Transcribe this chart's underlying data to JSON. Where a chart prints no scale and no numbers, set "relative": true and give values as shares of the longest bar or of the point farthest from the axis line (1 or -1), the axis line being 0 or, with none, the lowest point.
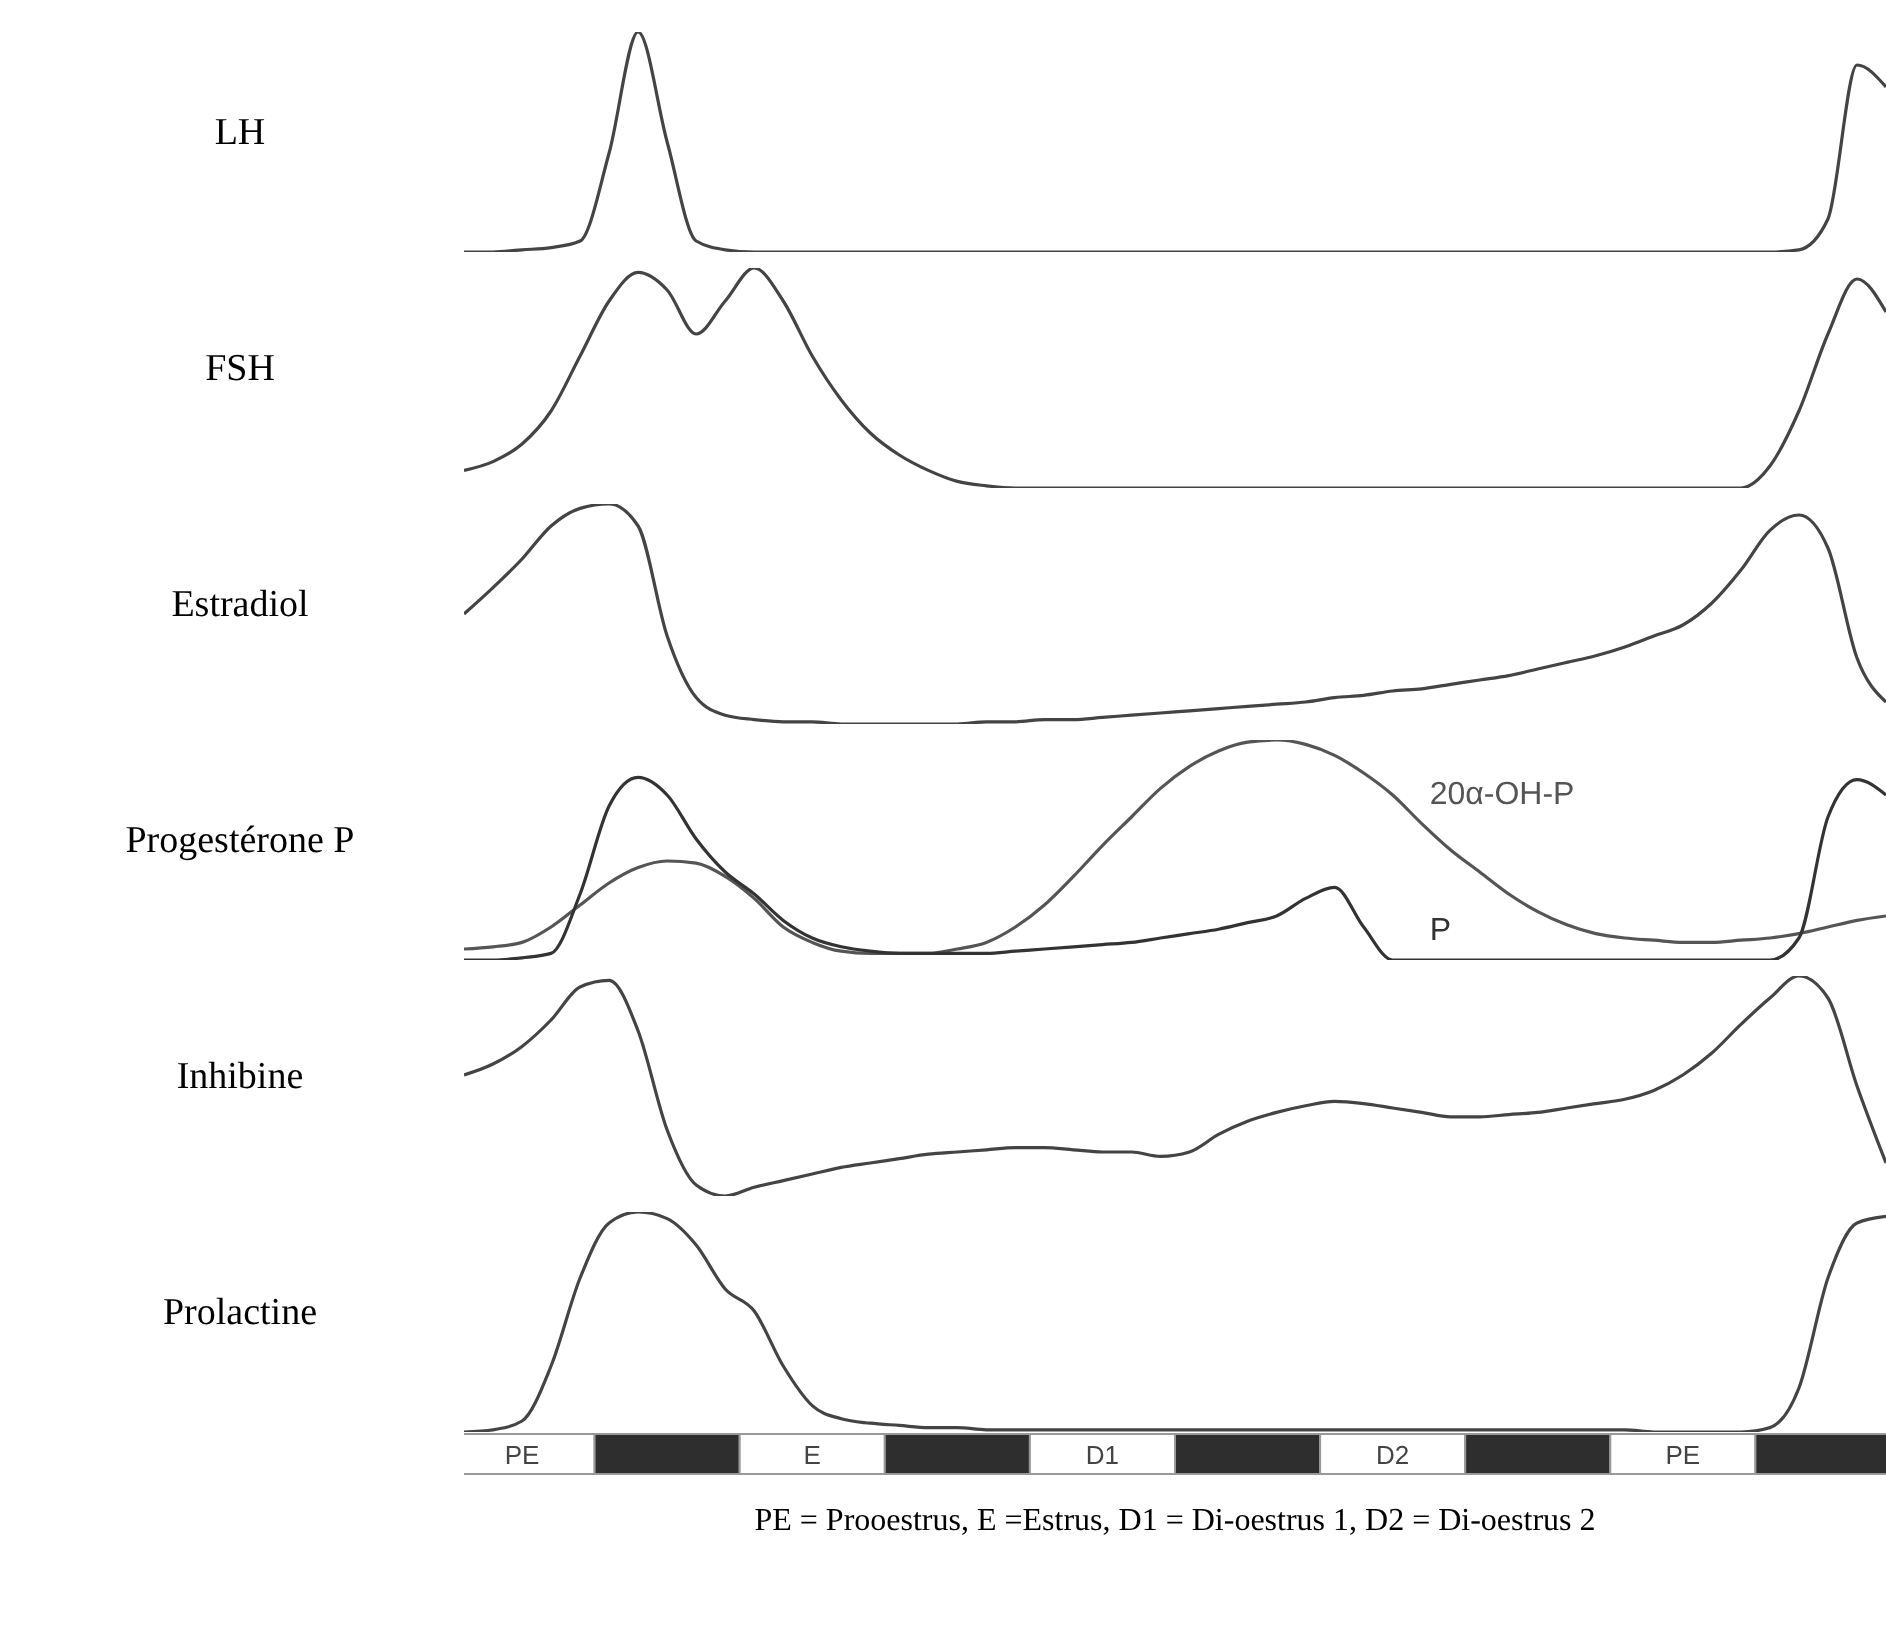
{
  "chart_data": [
    {
      "type": "line",
      "ylabel": "LH",
      "relative": true,
      "tick_labels": false,
      "categories": [
        null,
        null,
        null,
        null,
        null,
        null,
        null,
        null,
        null,
        null,
        null,
        null,
        null,
        null,
        null,
        null,
        null,
        null,
        null,
        null,
        null,
        null,
        null,
        null,
        null,
        null,
        null,
        null,
        null,
        null,
        null,
        null,
        null,
        null,
        null,
        null,
        null,
        null,
        null,
        null,
        null,
        null,
        null,
        null,
        null,
        null,
        null,
        null,
        null,
        null
      ],
      "series": [
        {
          "color": "#444444",
          "values": [
            0,
            0,
            0.01,
            0.02,
            0.05,
            0.45,
            1,
            0.5,
            0.05,
            0.01,
            0,
            0,
            0,
            0,
            0,
            0,
            0,
            0,
            0,
            0,
            0,
            0,
            0,
            0,
            0,
            0,
            0,
            0,
            0,
            0,
            0,
            0,
            0,
            0,
            0,
            0,
            0,
            0,
            0,
            0,
            0,
            0,
            0,
            0,
            0,
            0,
            0.01,
            0.15,
            0.85,
            0.75
          ]
        }
      ]
    },
    {
      "type": "line",
      "ylabel": "FSH",
      "relative": true,
      "tick_labels": false,
      "categories": [
        null,
        null,
        null,
        null,
        null,
        null,
        null,
        null,
        null,
        null,
        null,
        null,
        null,
        null,
        null,
        null,
        null,
        null,
        null,
        null,
        null,
        null,
        null,
        null,
        null,
        null,
        null,
        null,
        null,
        null,
        null,
        null,
        null,
        null,
        null,
        null,
        null,
        null,
        null,
        null,
        null,
        null,
        null,
        null,
        null,
        null,
        null,
        null,
        null,
        null
      ],
      "series": [
        {
          "color": "#444444",
          "values": [
            0.08,
            0.12,
            0.2,
            0.35,
            0.6,
            0.85,
            0.98,
            0.9,
            0.7,
            0.85,
            1,
            0.85,
            0.6,
            0.4,
            0.25,
            0.15,
            0.08,
            0.03,
            0.01,
            0,
            0,
            0,
            0,
            0,
            0,
            0,
            0,
            0,
            0,
            0,
            0,
            0,
            0,
            0,
            0,
            0,
            0,
            0,
            0,
            0,
            0,
            0,
            0,
            0,
            0,
            0.1,
            0.35,
            0.7,
            0.95,
            0.8
          ]
        }
      ]
    },
    {
      "type": "line",
      "ylabel": "Estradiol",
      "relative": true,
      "tick_labels": false,
      "categories": [
        null,
        null,
        null,
        null,
        null,
        null,
        null,
        null,
        null,
        null,
        null,
        null,
        null,
        null,
        null,
        null,
        null,
        null,
        null,
        null,
        null,
        null,
        null,
        null,
        null,
        null,
        null,
        null,
        null,
        null,
        null,
        null,
        null,
        null,
        null,
        null,
        null,
        null,
        null,
        null,
        null,
        null,
        null,
        null,
        null,
        null,
        null,
        null,
        null,
        null
      ],
      "series": [
        {
          "color": "#444444",
          "values": [
            0.5,
            0.62,
            0.75,
            0.9,
            0.98,
            1,
            0.9,
            0.4,
            0.12,
            0.04,
            0.02,
            0.01,
            0.01,
            0,
            0,
            0,
            0,
            0,
            0.01,
            0.01,
            0.02,
            0.02,
            0.03,
            0.04,
            0.05,
            0.06,
            0.07,
            0.08,
            0.09,
            0.1,
            0.12,
            0.13,
            0.15,
            0.16,
            0.18,
            0.2,
            0.22,
            0.25,
            0.28,
            0.31,
            0.35,
            0.4,
            0.45,
            0.55,
            0.7,
            0.88,
            0.95,
            0.8,
            0.3,
            0.1
          ]
        }
      ]
    },
    {
      "type": "line",
      "ylabel": "Progestérone P",
      "relative": true,
      "tick_labels": false,
      "categories": [
        null,
        null,
        null,
        null,
        null,
        null,
        null,
        null,
        null,
        null,
        null,
        null,
        null,
        null,
        null,
        null,
        null,
        null,
        null,
        null,
        null,
        null,
        null,
        null,
        null,
        null,
        null,
        null,
        null,
        null,
        null,
        null,
        null,
        null,
        null,
        null,
        null,
        null,
        null,
        null,
        null,
        null,
        null,
        null,
        null,
        null,
        null,
        null,
        null,
        null
      ],
      "series": [
        {
          "name": "20α-OH-P",
          "color": "#555555",
          "values": [
            0.05,
            0.06,
            0.08,
            0.15,
            0.25,
            0.35,
            0.42,
            0.45,
            0.44,
            0.38,
            0.28,
            0.15,
            0.08,
            0.04,
            0.03,
            0.03,
            0.03,
            0.05,
            0.08,
            0.15,
            0.25,
            0.38,
            0.52,
            0.65,
            0.78,
            0.88,
            0.95,
            0.99,
            1,
            0.98,
            0.93,
            0.85,
            0.75,
            0.62,
            0.5,
            0.4,
            0.3,
            0.22,
            0.16,
            0.12,
            0.1,
            0.09,
            0.08,
            0.08,
            0.09,
            0.1,
            0.12,
            0.15,
            0.18,
            0.2
          ]
        },
        {
          "name": "P",
          "color": "#333333",
          "values": [
            0,
            0,
            0.01,
            0.03,
            0.3,
            0.7,
            0.83,
            0.75,
            0.55,
            0.4,
            0.3,
            0.18,
            0.1,
            0.06,
            0.04,
            0.03,
            0.03,
            0.03,
            0.03,
            0.04,
            0.05,
            0.06,
            0.07,
            0.08,
            0.1,
            0.12,
            0.14,
            0.17,
            0.2,
            0.28,
            0.33,
            0.15,
            0,
            0,
            0,
            0,
            0,
            0,
            0,
            0,
            0,
            0,
            0,
            0,
            0,
            0,
            0.1,
            0.65,
            0.82,
            0.75
          ]
        }
      ]
    },
    {
      "type": "line",
      "ylabel": "Inhibine",
      "relative": true,
      "tick_labels": false,
      "categories": [
        null,
        null,
        null,
        null,
        null,
        null,
        null,
        null,
        null,
        null,
        null,
        null,
        null,
        null,
        null,
        null,
        null,
        null,
        null,
        null,
        null,
        null,
        null,
        null,
        null,
        null,
        null,
        null,
        null,
        null,
        null,
        null,
        null,
        null,
        null,
        null,
        null,
        null,
        null,
        null,
        null,
        null,
        null,
        null,
        null,
        null,
        null,
        null,
        null,
        null
      ],
      "series": [
        {
          "color": "#444444",
          "values": [
            0.55,
            0.6,
            0.68,
            0.8,
            0.95,
            0.98,
            0.75,
            0.3,
            0.05,
            0,
            0.04,
            0.07,
            0.1,
            0.13,
            0.15,
            0.17,
            0.19,
            0.2,
            0.21,
            0.22,
            0.22,
            0.21,
            0.2,
            0.2,
            0.18,
            0.2,
            0.28,
            0.34,
            0.38,
            0.41,
            0.43,
            0.42,
            0.4,
            0.38,
            0.36,
            0.36,
            0.37,
            0.38,
            0.4,
            0.42,
            0.44,
            0.48,
            0.55,
            0.65,
            0.78,
            0.9,
            1,
            0.9,
            0.5,
            0.15
          ]
        }
      ]
    },
    {
      "type": "line",
      "ylabel": "Prolactine",
      "relative": true,
      "tick_labels": "x",
      "categories": [
        null,
        null,
        "PE",
        null,
        null,
        null,
        null,
        null,
        null,
        null,
        null,
        null,
        "E",
        null,
        null,
        null,
        null,
        null,
        null,
        null,
        null,
        null,
        "D1",
        null,
        null,
        null,
        null,
        null,
        null,
        null,
        null,
        null,
        "D2",
        null,
        null,
        null,
        null,
        null,
        null,
        null,
        null,
        null,
        "PE",
        null,
        null,
        null,
        null,
        null,
        null,
        null
      ],
      "series": [
        {
          "color": "#444444",
          "values": [
            0,
            0.01,
            0.05,
            0.3,
            0.7,
            0.95,
            1,
            0.97,
            0.85,
            0.65,
            0.55,
            0.3,
            0.12,
            0.06,
            0.04,
            0.03,
            0.02,
            0.02,
            0.01,
            0.01,
            0.01,
            0.01,
            0.01,
            0.01,
            0.01,
            0.01,
            0.01,
            0.01,
            0.01,
            0.01,
            0.01,
            0.01,
            0.01,
            0.01,
            0.01,
            0.01,
            0.01,
            0.01,
            0.01,
            0.01,
            0.01,
            0,
            0,
            0,
            0,
            0.02,
            0.2,
            0.7,
            0.95,
            0.98
          ]
        }
      ],
      "annotations": [
        "PE = Prooestrus, E =Estrus, D1 = Di-oestrus 1, D2 = Di-oestrus 2"
      ]
    }
  ]
}
